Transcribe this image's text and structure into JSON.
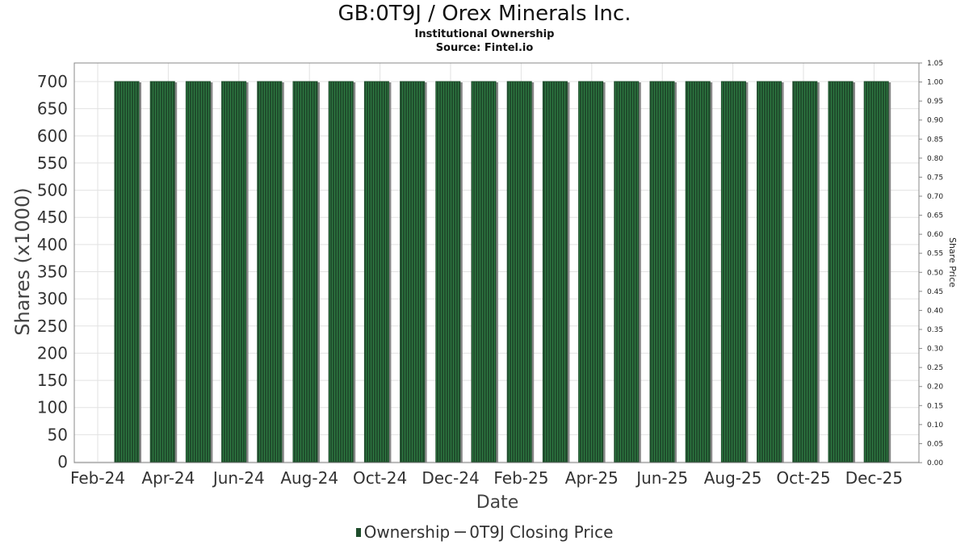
{
  "title": "GB:0T9J / Orex Minerals Inc.",
  "subtitle_1": "Institutional Ownership",
  "subtitle_2": "Source: Fintel.io",
  "legend": {
    "ownership": "Ownership",
    "closing_price": "0T9J Closing Price"
  },
  "colors": {
    "bar_fill": "#1f4d2c",
    "bar_stripe": "#2e7a42",
    "bar_shadow": "#888888",
    "grid": "#e2e2e2",
    "frame": "#888888"
  },
  "chart_data": {
    "type": "bar",
    "xlabel": "Date",
    "ylabel": "Shares (x1000)",
    "y2label": "Share Price",
    "ylim": [
      0,
      720
    ],
    "y2lim": [
      0,
      1.05
    ],
    "grid": true,
    "legend_position": "bottom",
    "x_tick_labels": [
      "Feb-24",
      "Apr-24",
      "Jun-24",
      "Aug-24",
      "Oct-24",
      "Dec-24",
      "Feb-25",
      "Apr-25",
      "Jun-25",
      "Aug-25",
      "Oct-25",
      "Dec-25"
    ],
    "y_ticks": [
      0,
      50,
      100,
      150,
      200,
      250,
      300,
      350,
      400,
      450,
      500,
      550,
      600,
      650,
      700
    ],
    "y2_ticks": [
      "0.00",
      "0.05",
      "0.10",
      "0.15",
      "0.20",
      "0.25",
      "0.30",
      "0.35",
      "0.40",
      "0.45",
      "0.50",
      "0.55",
      "0.60",
      "0.65",
      "0.70",
      "0.75",
      "0.80",
      "0.85",
      "0.90",
      "0.95",
      "1.00",
      "1.05"
    ],
    "series": [
      {
        "name": "Ownership",
        "values": [
          700,
          700,
          700,
          700,
          700,
          700,
          700,
          700,
          700,
          700,
          700,
          700,
          700,
          700,
          700,
          700,
          700,
          700,
          700,
          700,
          700,
          700
        ]
      }
    ]
  }
}
